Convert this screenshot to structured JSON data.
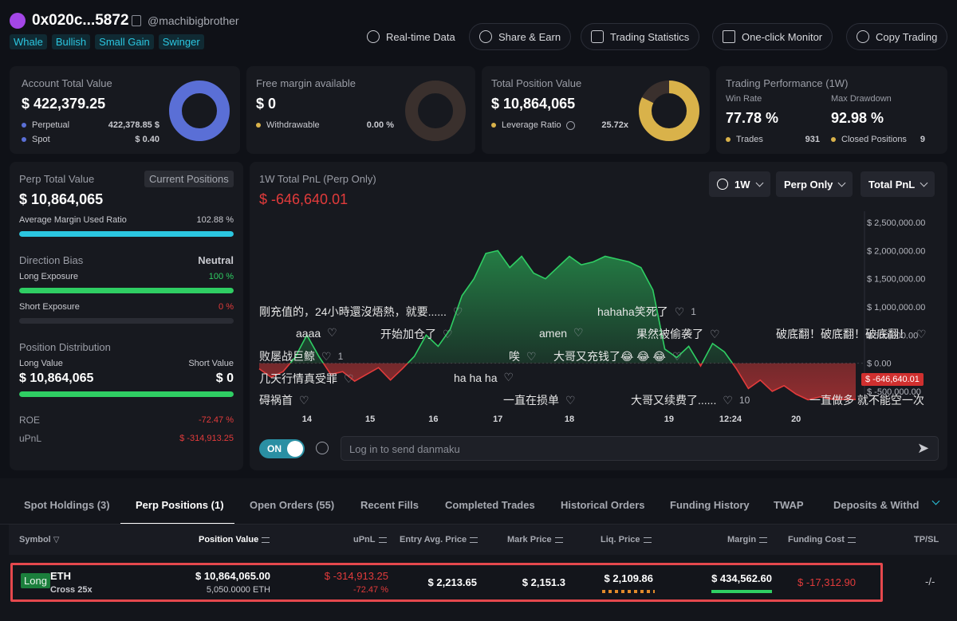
{
  "header": {
    "address": "0x020c...5872",
    "handle": "@machibigbrother",
    "tags": [
      "Whale",
      "Bullish",
      "Small Gain",
      "Swinger"
    ],
    "buttons": {
      "realtime": "Real-time Data",
      "share": "Share & Earn",
      "stats": "Trading Statistics",
      "monitor": "One-click Monitor",
      "copy": "Copy Trading"
    }
  },
  "account": {
    "title": "Account Total Value",
    "value": "$ 422,379.25",
    "perp_label": "Perpetual",
    "perp_value": "$ 422,378.85",
    "spot_label": "Spot",
    "spot_value": "$ 0.40"
  },
  "margin": {
    "title": "Free margin available",
    "value": "$ 0",
    "withdrawable_label": "Withdrawable",
    "withdrawable_value": "0.00 %"
  },
  "position": {
    "title": "Total Position Value",
    "value": "$ 10,864,065",
    "leverage_label": "Leverage Ratio",
    "leverage_value": "25.72x"
  },
  "performance": {
    "title": "Trading Performance (1W)",
    "winrate_label": "Win Rate",
    "winrate_value": "77.78 %",
    "drawdown_label": "Max Drawdown",
    "drawdown_value": "92.98 %",
    "trades_label": "Trades",
    "trades_value": "931",
    "closed_label": "Closed Positions",
    "closed_value": "9"
  },
  "perp_panel": {
    "title": "Perp Total Value",
    "current_positions": "Current Positions",
    "value": "$ 10,864,065",
    "margin_ratio_label": "Average Margin Used Ratio",
    "margin_ratio_value": "102.88 %",
    "margin_ratio_fill": 1.0,
    "bias_label": "Direction Bias",
    "bias_value": "Neutral",
    "long_exposure_label": "Long Exposure",
    "long_exposure_value": "100 %",
    "long_exposure_fill": 1.0,
    "short_exposure_label": "Short Exposure",
    "short_exposure_value": "0 %",
    "short_exposure_fill": 0.0,
    "distribution_label": "Position Distribution",
    "long_value_label": "Long Value",
    "short_value_label": "Short Value",
    "long_value": "$ 10,864,065",
    "short_value": "$ 0",
    "roe_label": "ROE",
    "roe_value": "-72.47 %",
    "upnl_label": "uPnL",
    "upnl_value": "$ -314,913.25"
  },
  "chart_panel": {
    "title": "1W Total PnL (Perp Only)",
    "value": "$ -646,640.01",
    "period": "1W",
    "scope": "Perp Only",
    "metric": "Total PnL",
    "current_label": "$ -646,640.01",
    "toggle": "ON",
    "danmaku_placeholder": "Log in to send danmaku"
  },
  "danmaku": [
    {
      "text": "剛充值的，24小時還沒焐熱，就要......",
      "count": ""
    },
    {
      "text": "hahaha笑死了",
      "count": "1"
    },
    {
      "text": "aaaa",
      "count": ""
    },
    {
      "text": "开始加仓了",
      "count": ""
    },
    {
      "text": "amen",
      "count": ""
    },
    {
      "text": "果然被偷袭了",
      "count": ""
    },
    {
      "text": "破底翻！破底翻！破底翻！",
      "count": ""
    },
    {
      "text": "败屡战巨鲸",
      "count": "1"
    },
    {
      "text": "唉",
      "count": ""
    },
    {
      "text": "大哥又充钱了😂 😂 😂",
      "count": ""
    },
    {
      "text": "几天行情真受罪",
      "count": ""
    },
    {
      "text": "ha ha ha",
      "count": ""
    },
    {
      "text": "碍祸首",
      "count": ""
    },
    {
      "text": "一直在损单",
      "count": ""
    },
    {
      "text": "大哥又续费了......",
      "count": "10"
    },
    {
      "text": "一直做多 就不能空一次",
      "count": ""
    }
  ],
  "chart_data": {
    "type": "area",
    "x_ticks": [
      "14",
      "15",
      "16",
      "17",
      "18",
      "19",
      "12:24",
      "20"
    ],
    "y_ticks": [
      "$ 2,500,000.00",
      "$ 2,000,000.00",
      "$ 1,500,000.00",
      "$ 1,000,000.00",
      "$ 500,000.00",
      "$ 0.00",
      "$ -500,000.00"
    ],
    "ylim": [
      -700000,
      2700000
    ],
    "x": [
      0,
      0.02,
      0.04,
      0.06,
      0.08,
      0.1,
      0.12,
      0.14,
      0.16,
      0.18,
      0.2,
      0.22,
      0.24,
      0.26,
      0.28,
      0.3,
      0.32,
      0.34,
      0.36,
      0.38,
      0.4,
      0.42,
      0.44,
      0.46,
      0.48,
      0.5,
      0.52,
      0.54,
      0.56,
      0.58,
      0.6,
      0.62,
      0.64,
      0.66,
      0.68,
      0.7,
      0.72,
      0.74,
      0.76,
      0.78,
      0.8,
      0.82,
      0.84,
      0.86,
      0.88,
      0.9,
      0.92,
      0.94,
      0.96,
      0.98,
      1.0
    ],
    "values": [
      -100000,
      -250000,
      -150000,
      100000,
      500000,
      120000,
      -200000,
      -150000,
      -320000,
      -200000,
      -80000,
      -300000,
      -100000,
      120000,
      500000,
      300000,
      600000,
      1200000,
      1500000,
      1950000,
      2000000,
      1700000,
      1900000,
      1600000,
      1500000,
      1700000,
      1900000,
      1750000,
      1800000,
      1900000,
      1850000,
      1800000,
      1700000,
      1300000,
      250000,
      100000,
      300000,
      -50000,
      350000,
      200000,
      -100000,
      -450000,
      -300000,
      -500000,
      -400000,
      -550000,
      -650000,
      -600000,
      -640000,
      -646640,
      -646640
    ]
  },
  "tabs": [
    "Spot Holdings (3)",
    "Perp Positions (1)",
    "Open Orders (55)",
    "Recent Fills",
    "Completed Trades",
    "Historical Orders",
    "Funding History",
    "TWAP",
    "Deposits & Withdra"
  ],
  "table": {
    "headers": [
      "Symbol",
      "Position Value",
      "uPnL",
      "Entry Avg. Price",
      "Mark Price",
      "Liq. Price",
      "Margin",
      "Funding Cost",
      "TP/SL"
    ],
    "row": {
      "side": "Long",
      "symbol": "ETH",
      "mode": "Cross 25x",
      "position_value": "$ 10,864,065.00",
      "position_size": "5,050.0000 ETH",
      "upnl": "$ -314,913.25",
      "upnl_pct": "-72.47 %",
      "entry": "$ 2,213.65",
      "mark": "$ 2,151.3",
      "liq": "$ 2,109.86",
      "margin": "$ 434,562.60",
      "funding": "$ -17,312.90",
      "tpsl": "-/-"
    }
  },
  "colors": {
    "accent": "#2bc6e0",
    "positive": "#2fce63",
    "negative": "#e23b3b",
    "perp_donut": "#5a6fd6",
    "position_donut": "#d9b24a",
    "margin_donut": "#3a302d"
  }
}
